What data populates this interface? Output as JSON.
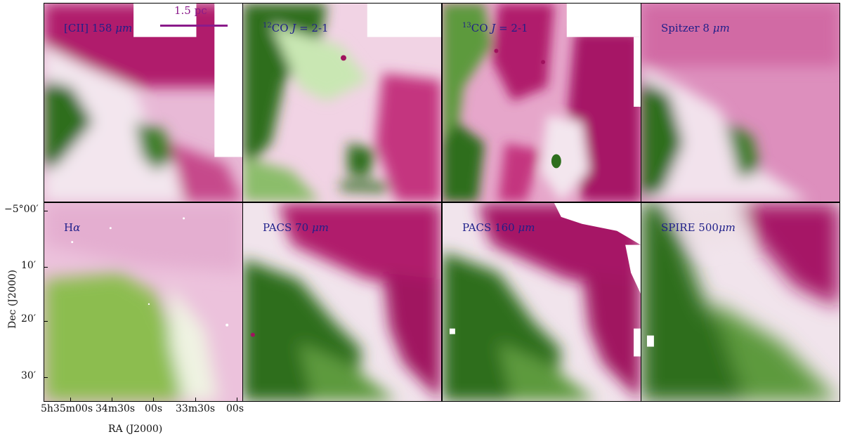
{
  "panels": [
    {
      "id": "cii",
      "label_main": "[CII] 158 ",
      "label_unit": "μm"
    },
    {
      "id": "co12",
      "label_sup": "12",
      "label_main": "CO ",
      "label_italic": "J",
      "label_tail": " = 2-1"
    },
    {
      "id": "co13",
      "label_sup": "13",
      "label_main": "CO ",
      "label_italic": "J",
      "label_tail": " = 2-1"
    },
    {
      "id": "spitzer",
      "label_main": "Spitzer 8 ",
      "label_unit": "μm"
    },
    {
      "id": "halpha",
      "label_main": "H",
      "label_italic": "α"
    },
    {
      "id": "pacs70",
      "label_main": "PACS 70 ",
      "label_unit": "μm"
    },
    {
      "id": "pacs160",
      "label_main": "PACS 160 ",
      "label_unit": "μm"
    },
    {
      "id": "spire500",
      "label_main": "SPIRE 500",
      "label_unit": "μm"
    }
  ],
  "scalebar": {
    "label": "1.5 pc"
  },
  "axes": {
    "ylabel": "Dec (J2000)",
    "xlabel": "RA (J2000)",
    "yticks": [
      "−5°00′",
      "10′",
      "20′",
      "30′"
    ],
    "xticks": [
      "5h35m00s",
      "34m30s",
      "00s",
      "33m30s",
      "00s"
    ]
  },
  "colors": {
    "green": "#2e6e1e",
    "magenta": "#a0125e",
    "label": "#1f1f8a",
    "scalebar": "#8a1a8a"
  }
}
